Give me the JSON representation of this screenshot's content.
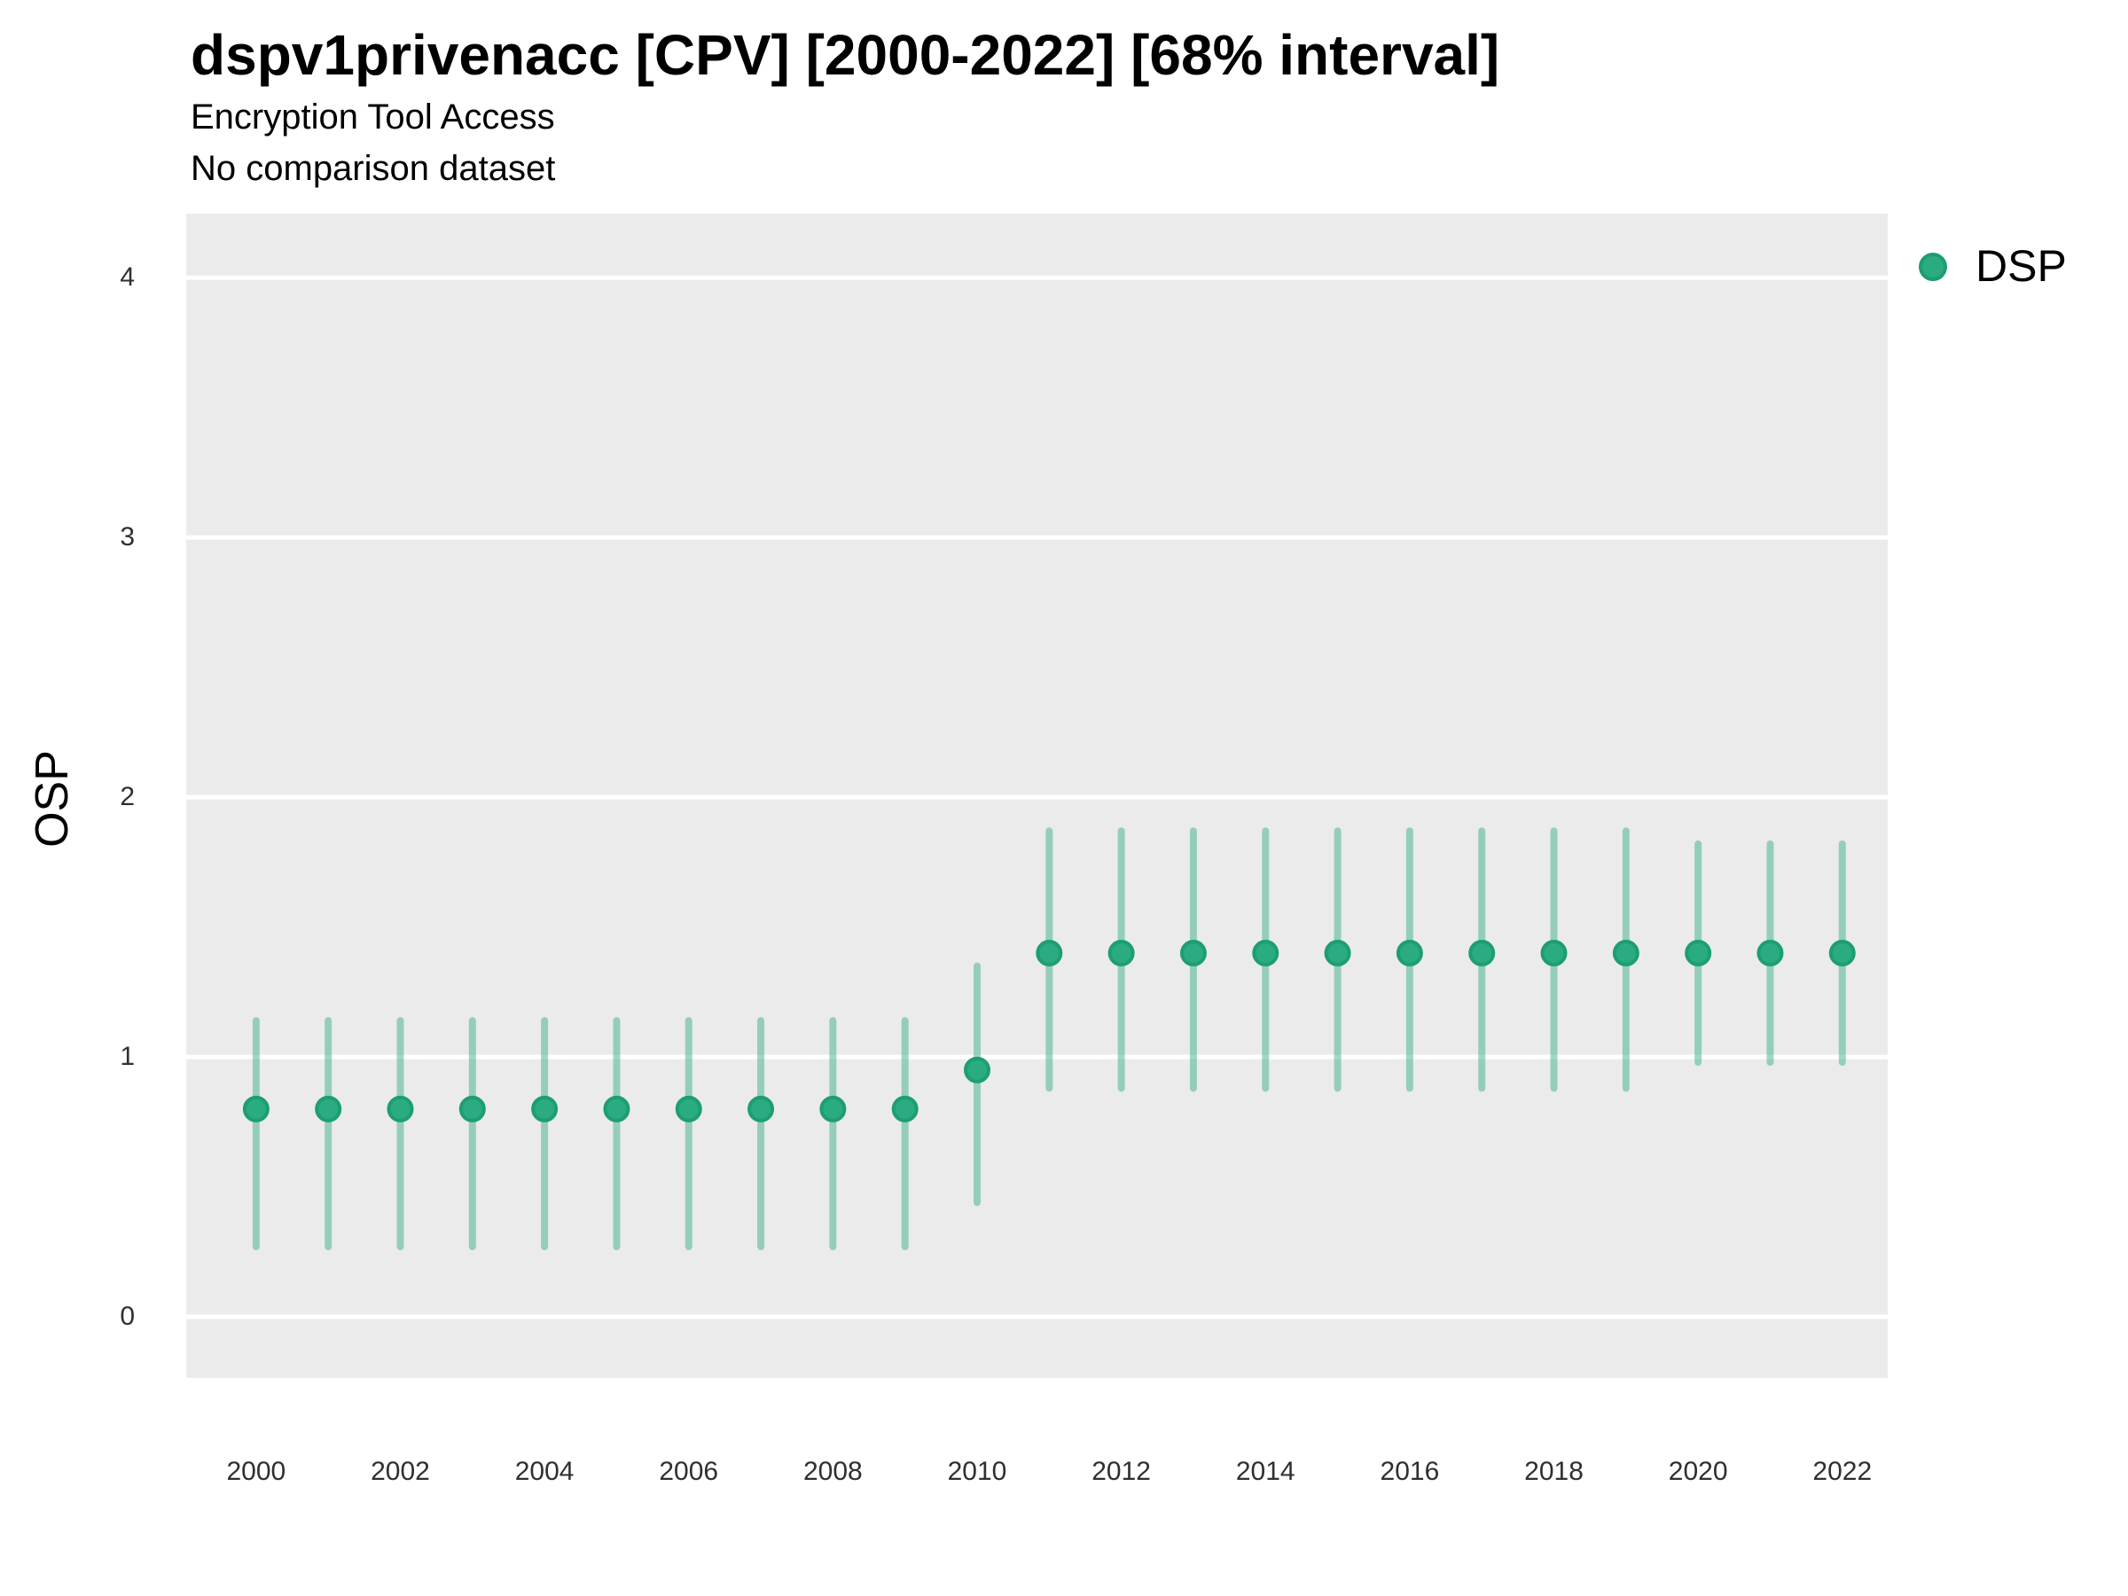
{
  "header": {
    "title": "dspv1privenacc [CPV] [2000-2022] [68% interval]",
    "subtitle": "Encryption Tool Access",
    "comparison_note": "No comparison dataset"
  },
  "axes": {
    "y_label": "OSP"
  },
  "legend": {
    "label": "DSP"
  },
  "colors": {
    "panel_bg": "#EBEBEB",
    "gridline": "#FFFFFF",
    "point_fill": "#2BAB81",
    "point_stroke": "#1D9E72",
    "interval_stroke": "rgba(43,171,129,0.45)"
  },
  "chart_data": {
    "type": "pointrange",
    "title": "dspv1privenacc [CPV] [2000-2022] [68% interval]",
    "subtitle": "Encryption Tool Access",
    "note": "No comparison dataset",
    "interval_level": "68%",
    "xlabel": "",
    "ylabel": "OSP",
    "xlim": [
      1999.03,
      2022.63
    ],
    "ylim": [
      -0.235,
      4.246
    ],
    "x_ticks": [
      2000,
      2002,
      2004,
      2006,
      2008,
      2010,
      2012,
      2014,
      2016,
      2018,
      2020,
      2022
    ],
    "y_ticks": [
      0,
      1,
      2,
      3,
      4
    ],
    "grid": "horizontal-major-only",
    "legend_position": "right-top",
    "series": [
      {
        "name": "DSP",
        "points": [
          {
            "x": 2000,
            "y": 0.8,
            "lo": 0.27,
            "hi": 1.14
          },
          {
            "x": 2001,
            "y": 0.8,
            "lo": 0.27,
            "hi": 1.14
          },
          {
            "x": 2002,
            "y": 0.8,
            "lo": 0.27,
            "hi": 1.14
          },
          {
            "x": 2003,
            "y": 0.8,
            "lo": 0.27,
            "hi": 1.14
          },
          {
            "x": 2004,
            "y": 0.8,
            "lo": 0.27,
            "hi": 1.14
          },
          {
            "x": 2005,
            "y": 0.8,
            "lo": 0.27,
            "hi": 1.14
          },
          {
            "x": 2006,
            "y": 0.8,
            "lo": 0.27,
            "hi": 1.14
          },
          {
            "x": 2007,
            "y": 0.8,
            "lo": 0.27,
            "hi": 1.14
          },
          {
            "x": 2008,
            "y": 0.8,
            "lo": 0.27,
            "hi": 1.14
          },
          {
            "x": 2009,
            "y": 0.8,
            "lo": 0.27,
            "hi": 1.14
          },
          {
            "x": 2010,
            "y": 0.95,
            "lo": 0.44,
            "hi": 1.35
          },
          {
            "x": 2011,
            "y": 1.4,
            "lo": 0.88,
            "hi": 1.87
          },
          {
            "x": 2012,
            "y": 1.4,
            "lo": 0.88,
            "hi": 1.87
          },
          {
            "x": 2013,
            "y": 1.4,
            "lo": 0.88,
            "hi": 1.87
          },
          {
            "x": 2014,
            "y": 1.4,
            "lo": 0.88,
            "hi": 1.87
          },
          {
            "x": 2015,
            "y": 1.4,
            "lo": 0.88,
            "hi": 1.87
          },
          {
            "x": 2016,
            "y": 1.4,
            "lo": 0.88,
            "hi": 1.87
          },
          {
            "x": 2017,
            "y": 1.4,
            "lo": 0.88,
            "hi": 1.87
          },
          {
            "x": 2018,
            "y": 1.4,
            "lo": 0.88,
            "hi": 1.87
          },
          {
            "x": 2019,
            "y": 1.4,
            "lo": 0.88,
            "hi": 1.87
          },
          {
            "x": 2020,
            "y": 1.4,
            "lo": 0.98,
            "hi": 1.82
          },
          {
            "x": 2021,
            "y": 1.4,
            "lo": 0.98,
            "hi": 1.82
          },
          {
            "x": 2022,
            "y": 1.4,
            "lo": 0.98,
            "hi": 1.82
          }
        ]
      }
    ]
  }
}
